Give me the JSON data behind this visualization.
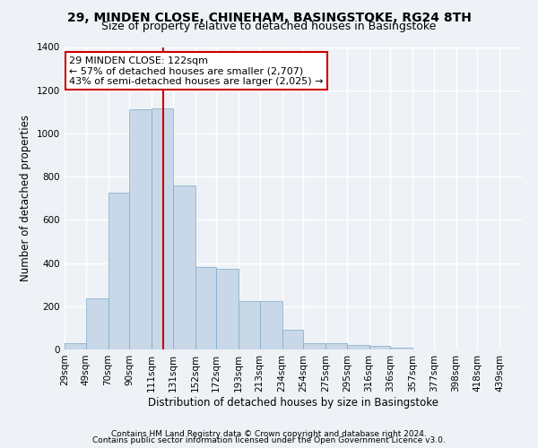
{
  "title": "29, MINDEN CLOSE, CHINEHAM, BASINGSTOKE, RG24 8TH",
  "subtitle": "Size of property relative to detached houses in Basingstoke",
  "xlabel": "Distribution of detached houses by size in Basingstoke",
  "ylabel": "Number of detached properties",
  "footnote1": "Contains HM Land Registry data © Crown copyright and database right 2024.",
  "footnote2": "Contains public sector information licensed under the Open Government Licence v3.0.",
  "annotation_line1": "29 MINDEN CLOSE: 122sqm",
  "annotation_line2": "← 57% of detached houses are smaller (2,707)",
  "annotation_line3": "43% of semi-detached houses are larger (2,025) →",
  "bar_color": "#c8d8e8",
  "bar_edge_color": "#7aaac8",
  "vline_color": "#cc0000",
  "vline_x": 122,
  "categories": [
    "29sqm",
    "49sqm",
    "70sqm",
    "90sqm",
    "111sqm",
    "131sqm",
    "152sqm",
    "172sqm",
    "193sqm",
    "213sqm",
    "234sqm",
    "254sqm",
    "275sqm",
    "295sqm",
    "316sqm",
    "336sqm",
    "357sqm",
    "377sqm",
    "398sqm",
    "418sqm",
    "439sqm"
  ],
  "bin_edges": [
    29,
    49,
    70,
    90,
    111,
    131,
    152,
    172,
    193,
    213,
    234,
    254,
    275,
    295,
    316,
    336,
    357,
    377,
    398,
    418,
    439
  ],
  "bar_heights": [
    30,
    235,
    725,
    1110,
    1115,
    760,
    380,
    375,
    225,
    225,
    90,
    30,
    28,
    22,
    18,
    10,
    0,
    0,
    0,
    0,
    0
  ],
  "ylim": [
    0,
    1400
  ],
  "yticks": [
    0,
    200,
    400,
    600,
    800,
    1000,
    1200,
    1400
  ],
  "background_color": "#eef2f7",
  "axes_background": "#eef2f7",
  "grid_color": "#ffffff",
  "title_fontsize": 10,
  "subtitle_fontsize": 9,
  "axis_label_fontsize": 8.5,
  "tick_fontsize": 7.5,
  "annotation_fontsize": 8,
  "footnote_fontsize": 6.5
}
